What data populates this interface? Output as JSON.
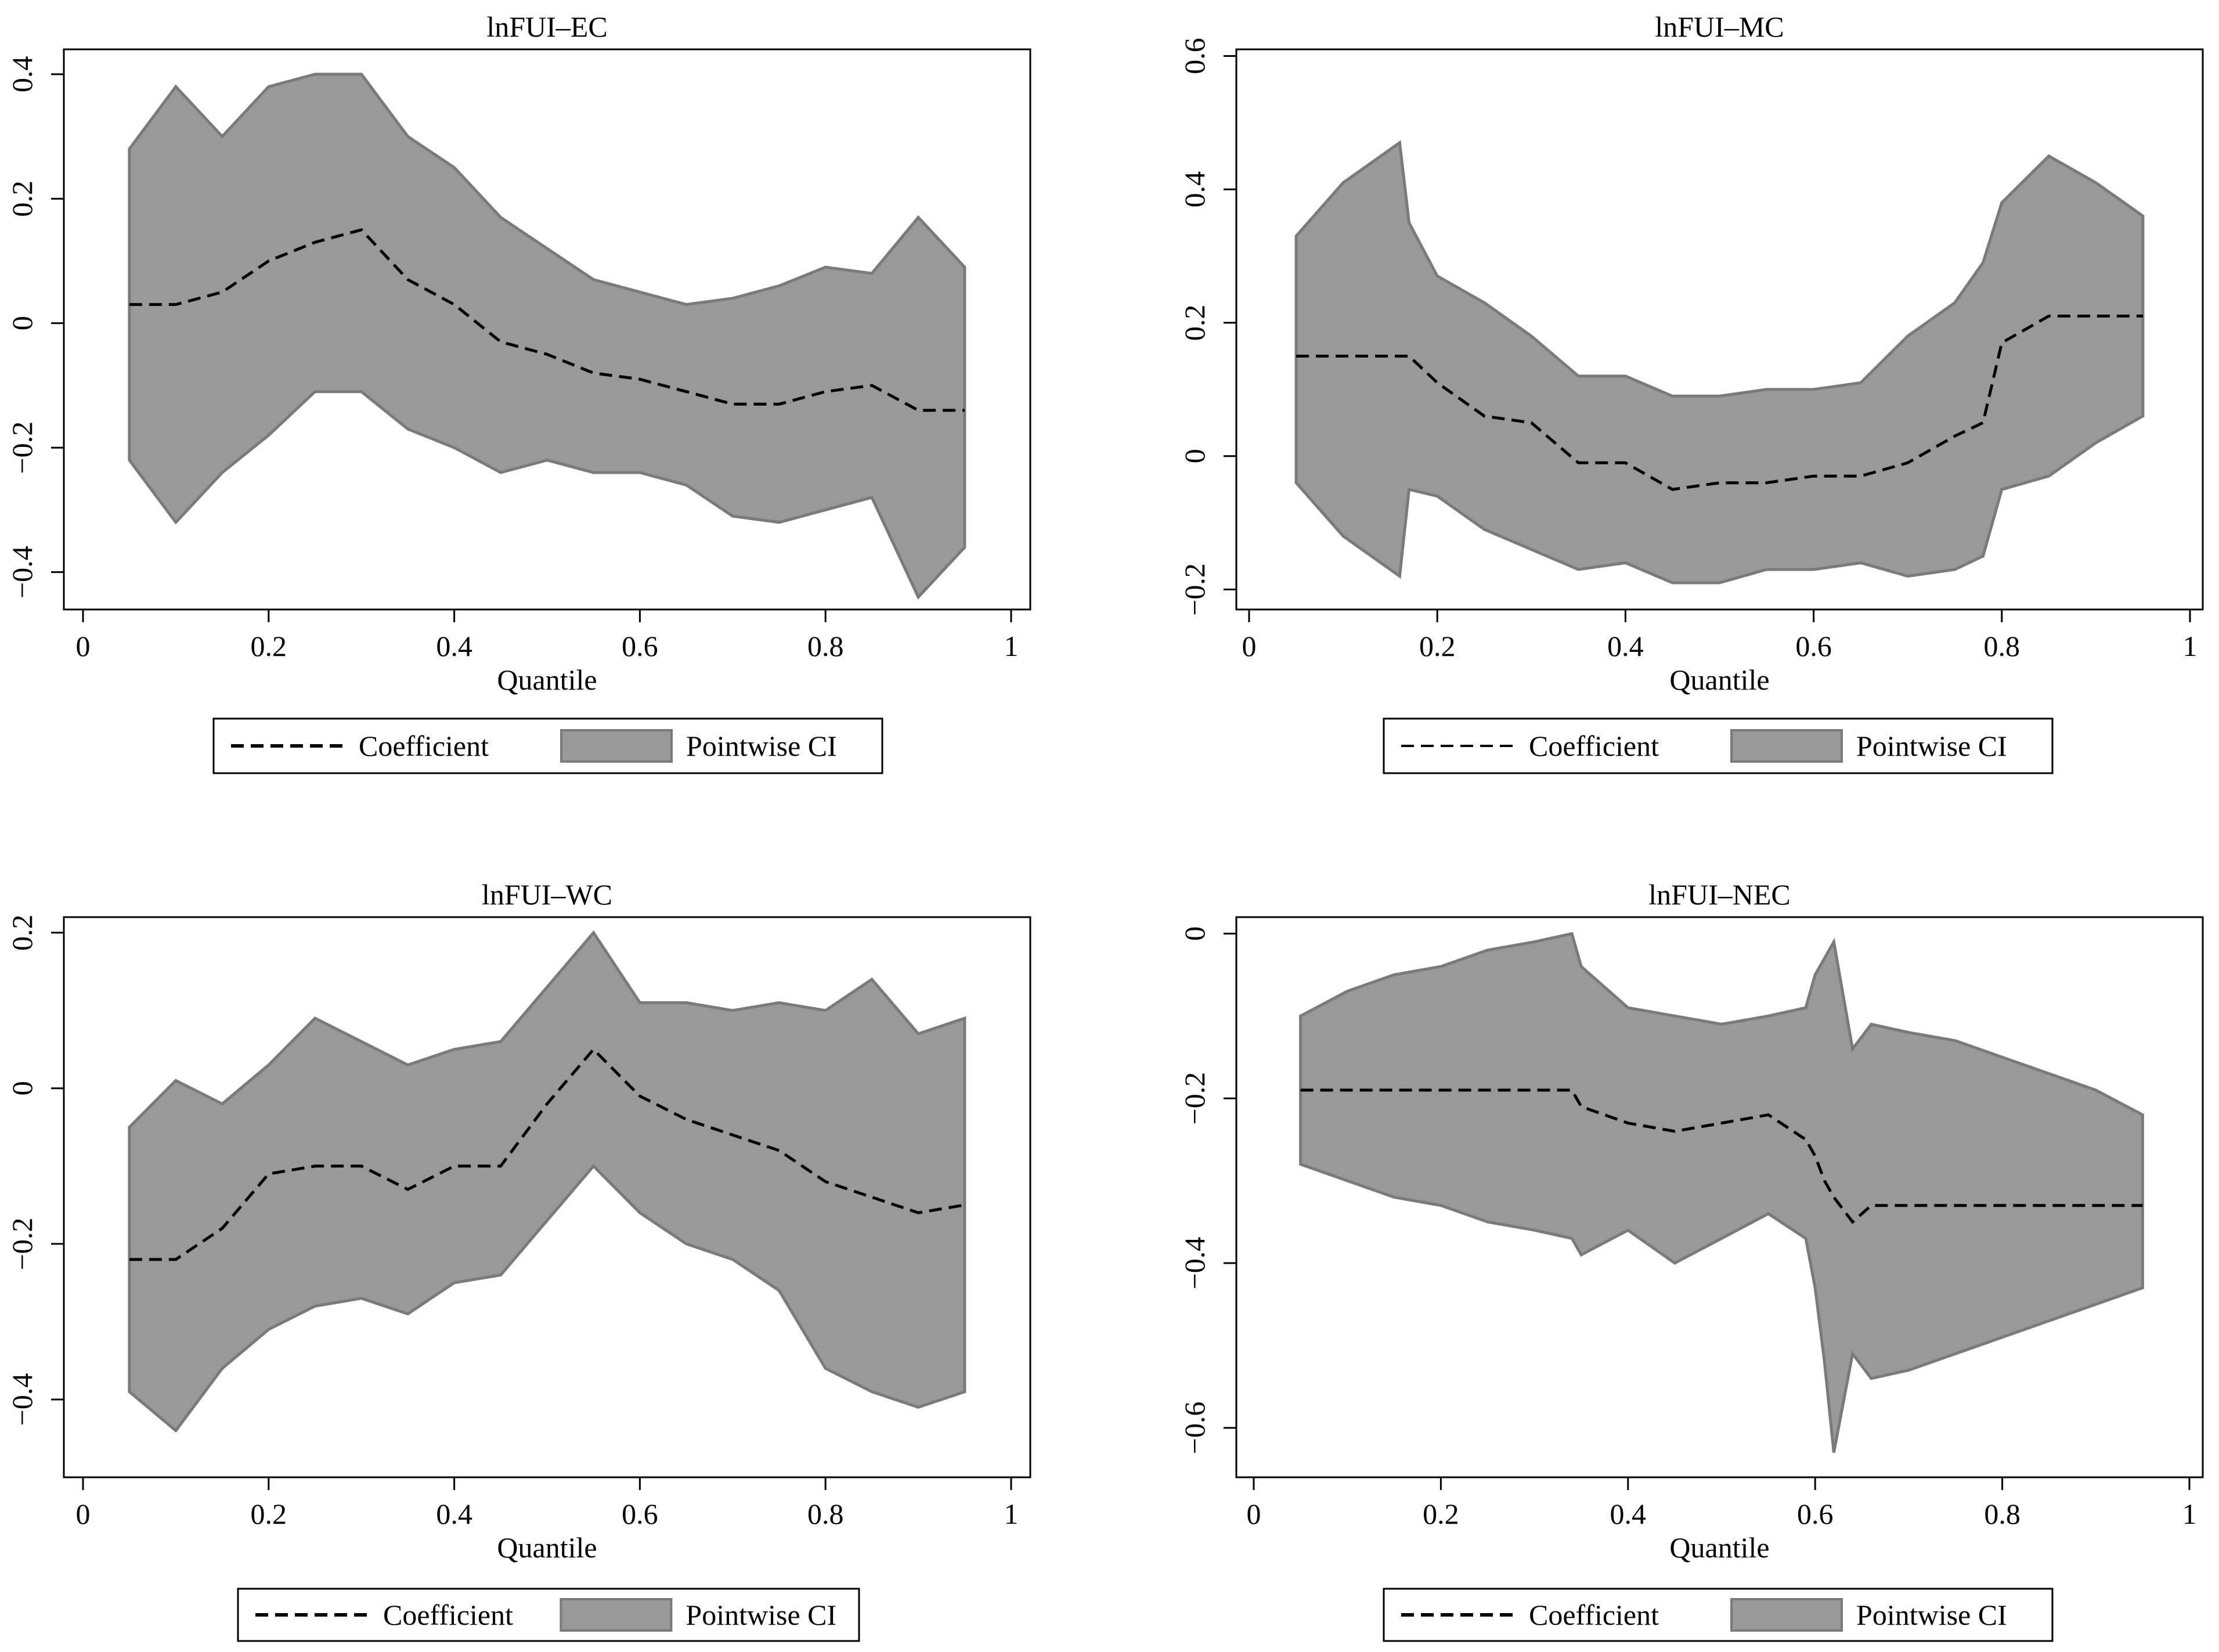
{
  "figure": {
    "x_axis_label": "Quantile"
  },
  "legend": {
    "coefficient_label": "Coefficient",
    "ci_label": "Pointwise CI"
  },
  "colors": {
    "ci_fill": "#999999",
    "ci_edge": "#7a7a7a",
    "line": "#000000",
    "background": "#ffffff"
  },
  "chart_data": [
    {
      "type": "line",
      "title": "lnFUI–EC",
      "xlabel": "Quantile",
      "ylabel": "",
      "xlim": [
        0,
        1
      ],
      "ylim": [
        -0.46,
        0.44
      ],
      "xticks": [
        0,
        0.2,
        0.4,
        0.6,
        0.8,
        1
      ],
      "xtick_labels": [
        "0",
        "0.2",
        "0.4",
        "0.6",
        "0.8",
        "1"
      ],
      "yticks": [
        -0.4,
        -0.2,
        0,
        0.2,
        0.4
      ],
      "ytick_labels": [
        "−0.4",
        "−0.2",
        "0",
        "0.2",
        "0.4"
      ],
      "x": [
        0.05,
        0.1,
        0.15,
        0.2,
        0.25,
        0.3,
        0.35,
        0.4,
        0.45,
        0.5,
        0.55,
        0.6,
        0.65,
        0.7,
        0.75,
        0.8,
        0.85,
        0.9,
        0.95
      ],
      "coefficient": [
        0.03,
        0.03,
        0.05,
        0.1,
        0.13,
        0.15,
        0.07,
        0.03,
        -0.03,
        -0.05,
        -0.08,
        -0.09,
        -0.11,
        -0.13,
        -0.13,
        -0.11,
        -0.1,
        -0.14,
        -0.14
      ],
      "ci_upper": [
        0.28,
        0.38,
        0.3,
        0.38,
        0.4,
        0.4,
        0.3,
        0.25,
        0.17,
        0.12,
        0.07,
        0.05,
        0.03,
        0.04,
        0.06,
        0.09,
        0.08,
        0.17,
        0.09
      ],
      "ci_lower": [
        -0.22,
        -0.32,
        -0.24,
        -0.18,
        -0.11,
        -0.11,
        -0.17,
        -0.2,
        -0.24,
        -0.22,
        -0.24,
        -0.24,
        -0.26,
        -0.31,
        -0.32,
        -0.3,
        -0.28,
        -0.44,
        -0.36
      ]
    },
    {
      "type": "line",
      "title": "lnFUI–MC",
      "xlabel": "Quantile",
      "ylabel": "",
      "xlim": [
        0,
        1
      ],
      "ylim": [
        -0.23,
        0.61
      ],
      "xticks": [
        0,
        0.2,
        0.4,
        0.6,
        0.8,
        1
      ],
      "xtick_labels": [
        "0",
        "0.2",
        "0.4",
        "0.6",
        "0.8",
        "1"
      ],
      "yticks": [
        -0.2,
        0,
        0.2,
        0.4,
        0.6
      ],
      "ytick_labels": [
        "−0.2",
        "0",
        "0.2",
        "0.4",
        "0.6"
      ],
      "x": [
        0.05,
        0.1,
        0.16,
        0.17,
        0.2,
        0.25,
        0.3,
        0.35,
        0.4,
        0.45,
        0.5,
        0.55,
        0.6,
        0.65,
        0.7,
        0.75,
        0.78,
        0.8,
        0.85,
        0.9,
        0.95
      ],
      "coefficient": [
        0.15,
        0.15,
        0.15,
        0.15,
        0.11,
        0.06,
        0.05,
        -0.01,
        -0.01,
        -0.05,
        -0.04,
        -0.04,
        -0.03,
        -0.03,
        -0.01,
        0.03,
        0.05,
        0.17,
        0.21,
        0.21,
        0.21
      ],
      "ci_upper": [
        0.33,
        0.41,
        0.47,
        0.35,
        0.27,
        0.23,
        0.18,
        0.12,
        0.12,
        0.09,
        0.09,
        0.1,
        0.1,
        0.11,
        0.18,
        0.23,
        0.29,
        0.38,
        0.45,
        0.41,
        0.36
      ],
      "ci_lower": [
        -0.04,
        -0.12,
        -0.18,
        -0.05,
        -0.06,
        -0.11,
        -0.14,
        -0.17,
        -0.16,
        -0.19,
        -0.19,
        -0.17,
        -0.17,
        -0.16,
        -0.18,
        -0.17,
        -0.15,
        -0.05,
        -0.03,
        0.02,
        0.06
      ]
    },
    {
      "type": "line",
      "title": "lnFUI–WC",
      "xlabel": "Quantile",
      "ylabel": "",
      "xlim": [
        0,
        1
      ],
      "ylim": [
        -0.5,
        0.22
      ],
      "xticks": [
        0,
        0.2,
        0.4,
        0.6,
        0.8,
        1
      ],
      "xtick_labels": [
        "0",
        "0.2",
        "0.4",
        "0.6",
        "0.8",
        "1"
      ],
      "yticks": [
        -0.4,
        -0.2,
        0,
        0.2
      ],
      "ytick_labels": [
        "−0.4",
        "−0.2",
        "0",
        "0.2"
      ],
      "x": [
        0.05,
        0.1,
        0.15,
        0.2,
        0.25,
        0.3,
        0.35,
        0.4,
        0.45,
        0.5,
        0.55,
        0.6,
        0.65,
        0.7,
        0.75,
        0.8,
        0.85,
        0.9,
        0.95
      ],
      "coefficient": [
        -0.22,
        -0.22,
        -0.18,
        -0.11,
        -0.1,
        -0.1,
        -0.13,
        -0.1,
        -0.1,
        -0.02,
        0.05,
        -0.01,
        -0.04,
        -0.06,
        -0.08,
        -0.12,
        -0.14,
        -0.16,
        -0.15
      ],
      "ci_upper": [
        -0.05,
        0.01,
        -0.02,
        0.03,
        0.09,
        0.06,
        0.03,
        0.05,
        0.06,
        0.13,
        0.2,
        0.11,
        0.11,
        0.1,
        0.11,
        0.1,
        0.14,
        0.07,
        0.09
      ],
      "ci_lower": [
        -0.39,
        -0.44,
        -0.36,
        -0.31,
        -0.28,
        -0.27,
        -0.29,
        -0.25,
        -0.24,
        -0.17,
        -0.1,
        -0.16,
        -0.2,
        -0.22,
        -0.26,
        -0.36,
        -0.39,
        -0.41,
        -0.39
      ]
    },
    {
      "type": "line",
      "title": "lnFUI–NEC",
      "xlabel": "Quantile",
      "ylabel": "",
      "xlim": [
        0,
        1
      ],
      "ylim": [
        -0.66,
        0.02
      ],
      "xticks": [
        0,
        0.2,
        0.4,
        0.6,
        0.8,
        1
      ],
      "xtick_labels": [
        "0",
        "0.2",
        "0.4",
        "0.6",
        "0.8",
        "1"
      ],
      "yticks": [
        -0.6,
        -0.4,
        -0.2,
        0
      ],
      "ytick_labels": [
        "−0.6",
        "−0.4",
        "−0.2",
        "0"
      ],
      "x": [
        0.05,
        0.1,
        0.15,
        0.2,
        0.25,
        0.3,
        0.34,
        0.35,
        0.4,
        0.45,
        0.5,
        0.55,
        0.59,
        0.6,
        0.61,
        0.62,
        0.64,
        0.66,
        0.7,
        0.75,
        0.8,
        0.85,
        0.9,
        0.95
      ],
      "coefficient": [
        -0.19,
        -0.19,
        -0.19,
        -0.19,
        -0.19,
        -0.19,
        -0.19,
        -0.21,
        -0.23,
        -0.24,
        -0.23,
        -0.22,
        -0.25,
        -0.27,
        -0.3,
        -0.32,
        -0.35,
        -0.33,
        -0.33,
        -0.33,
        -0.33,
        -0.33,
        -0.33,
        -0.33
      ],
      "ci_upper": [
        -0.1,
        -0.07,
        -0.05,
        -0.04,
        -0.02,
        -0.01,
        0.0,
        -0.04,
        -0.09,
        -0.1,
        -0.11,
        -0.1,
        -0.09,
        -0.05,
        -0.03,
        -0.01,
        -0.14,
        -0.11,
        -0.12,
        -0.13,
        -0.15,
        -0.17,
        -0.19,
        -0.22
      ],
      "ci_lower": [
        -0.28,
        -0.3,
        -0.32,
        -0.33,
        -0.35,
        -0.36,
        -0.37,
        -0.39,
        -0.36,
        -0.4,
        -0.37,
        -0.34,
        -0.37,
        -0.43,
        -0.52,
        -0.63,
        -0.51,
        -0.54,
        -0.53,
        -0.51,
        -0.49,
        -0.47,
        -0.45,
        -0.43
      ]
    }
  ]
}
